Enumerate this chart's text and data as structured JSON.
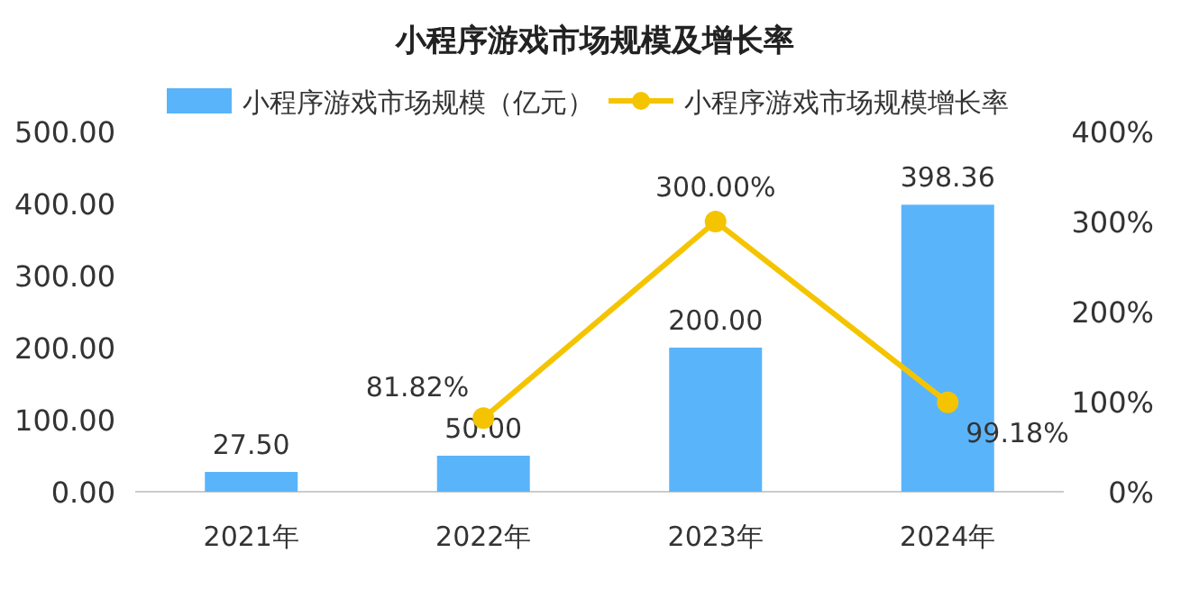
{
  "chart_data": {
    "type": "bar",
    "title": "小程序游戏市场规模及增长率",
    "categories": [
      "2021年",
      "2022年",
      "2023年",
      "2024年"
    ],
    "series": [
      {
        "name": "小程序游戏市场规模（亿元）",
        "color": "#5ab4fa",
        "values": [
          27.5,
          50,
          200,
          398.36
        ],
        "value_labels": [
          "27.50",
          "50.00",
          "200.00",
          "398.36"
        ]
      },
      {
        "name": "小程序游戏市场规模增长率",
        "type": "line",
        "axis": "y2",
        "color": "#f5c400",
        "values": [
          null,
          81.82,
          300,
          99.18
        ],
        "value_labels": [
          null,
          "81.82%",
          "300.00%",
          "99.18%"
        ]
      }
    ],
    "ylim": [
      0,
      500
    ],
    "yticks": [
      {
        "value": 0,
        "label": "0.00"
      },
      {
        "value": 100,
        "label": "100.00"
      },
      {
        "value": 200,
        "label": "200.00"
      },
      {
        "value": 300,
        "label": "300.00"
      },
      {
        "value": 400,
        "label": "400.00"
      },
      {
        "value": 500,
        "label": "500.00"
      }
    ],
    "y2lim": [
      0,
      400
    ],
    "y2ticks": [
      {
        "value": 0,
        "label": "0%"
      },
      {
        "value": 100,
        "label": "100%"
      },
      {
        "value": 200,
        "label": "200%"
      },
      {
        "value": 300,
        "label": "300%"
      },
      {
        "value": 400,
        "label": "400%"
      }
    ],
    "legend": "top",
    "marker": "circle",
    "line_style": "solid",
    "grid": false
  }
}
